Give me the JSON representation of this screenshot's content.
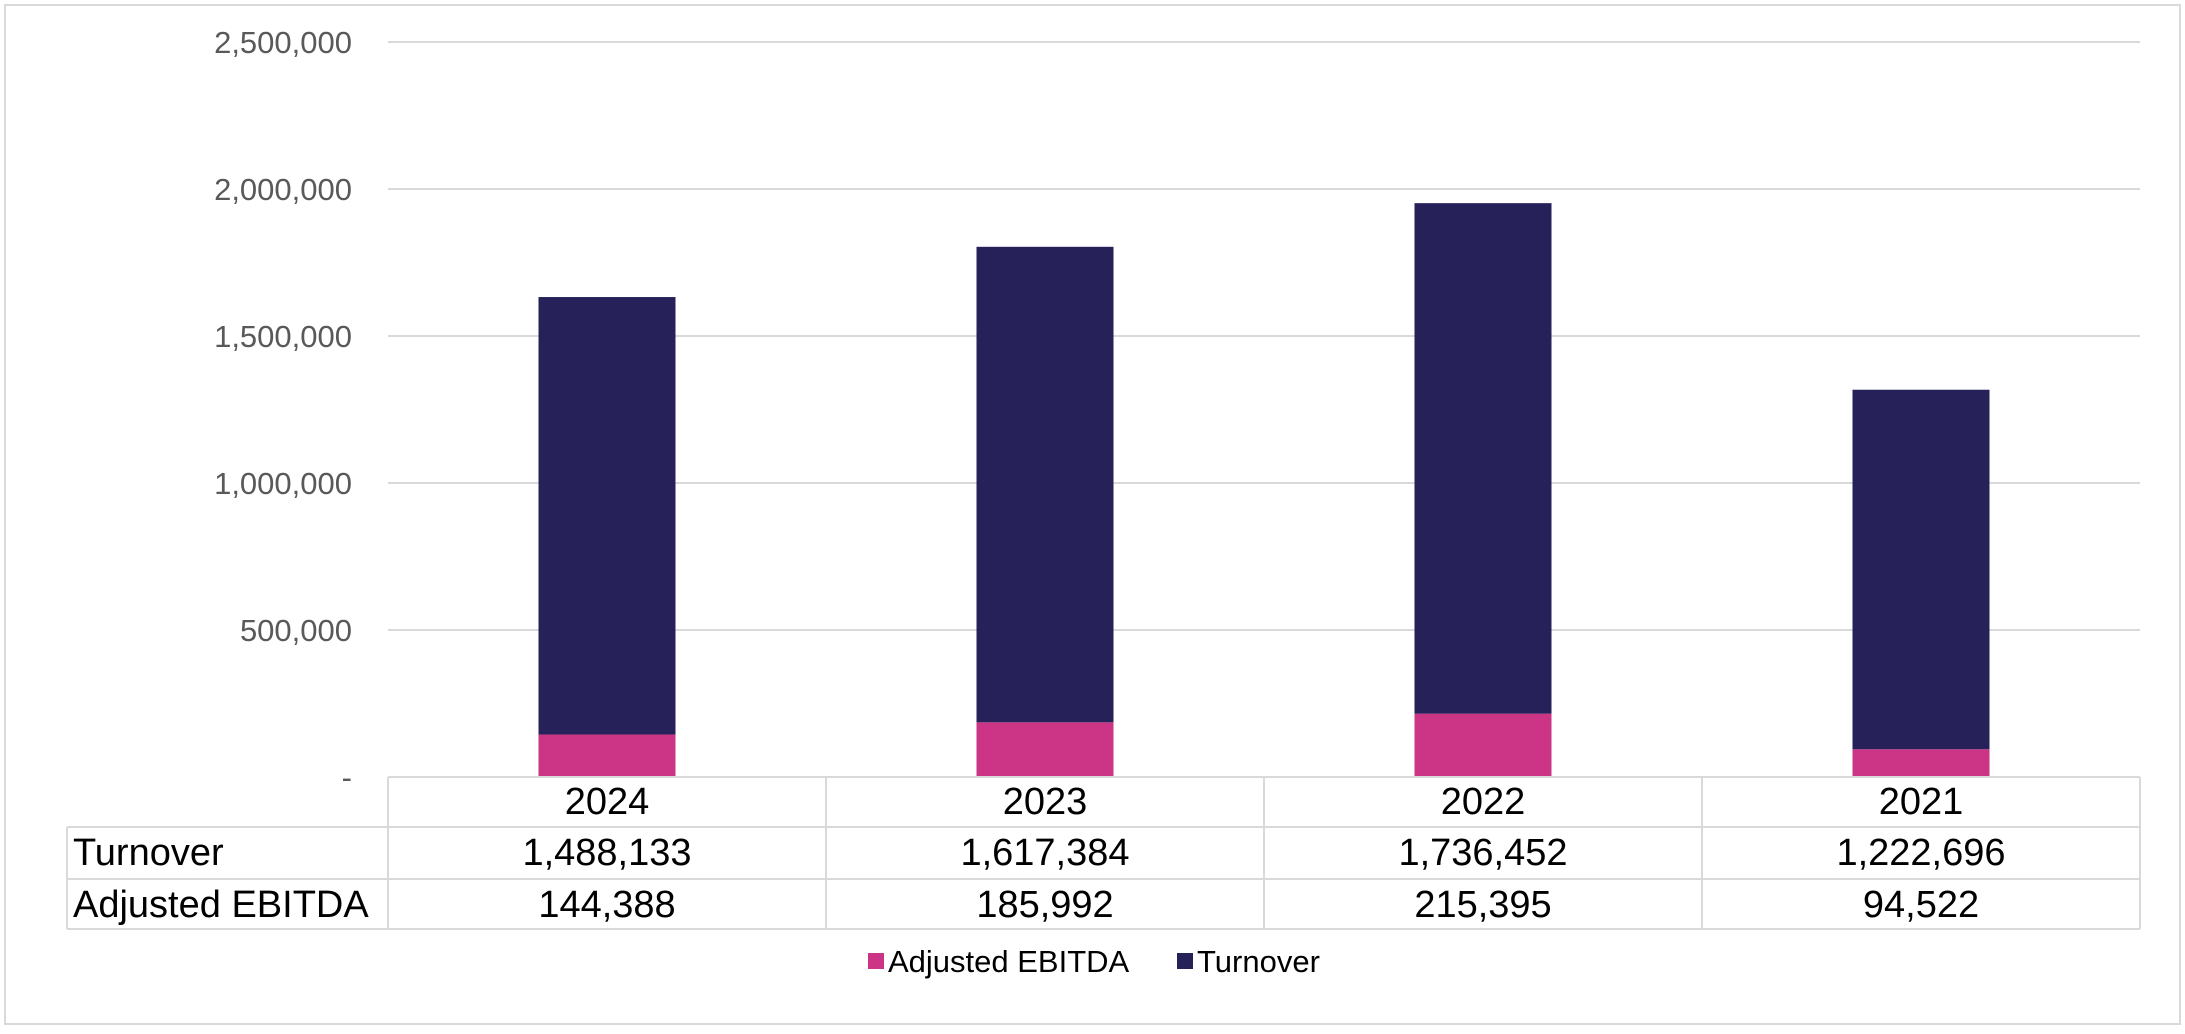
{
  "chart_data": {
    "type": "bar",
    "stacked": true,
    "categories": [
      "2024",
      "2023",
      "2022",
      "2021"
    ],
    "series": [
      {
        "name": "Adjusted EBITDA",
        "values": [
          144388,
          185992,
          215395,
          94522
        ],
        "color": "#cc3585"
      },
      {
        "name": "Turnover",
        "values": [
          1488133,
          1617384,
          1736452,
          1222696
        ],
        "color": "#27215a"
      }
    ],
    "y_ticks": [
      {
        "value": 0,
        "label": "-"
      },
      {
        "value": 500000,
        "label": "500,000"
      },
      {
        "value": 1000000,
        "label": "1,000,000"
      },
      {
        "value": 1500000,
        "label": "1,500,000"
      },
      {
        "value": 2000000,
        "label": "2,000,000"
      },
      {
        "value": 2500000,
        "label": "2,500,000"
      }
    ],
    "ylim": [
      0,
      2500000
    ],
    "grid": true,
    "legend_position": "bottom",
    "data_table": {
      "rows": [
        {
          "label": "Turnover",
          "values": [
            "1,488,133",
            "1,617,384",
            "1,736,452",
            "1,222,696"
          ]
        },
        {
          "label": "Adjusted EBITDA",
          "values": [
            "144,388",
            "185,992",
            "215,395",
            "94,522"
          ]
        }
      ]
    },
    "legend": [
      {
        "label": "Adjusted EBITDA",
        "color": "#cc3585"
      },
      {
        "label": "Turnover",
        "color": "#27215a"
      }
    ],
    "gridline_color": "#d9d9d9",
    "border_color": "#d9d9d9"
  }
}
